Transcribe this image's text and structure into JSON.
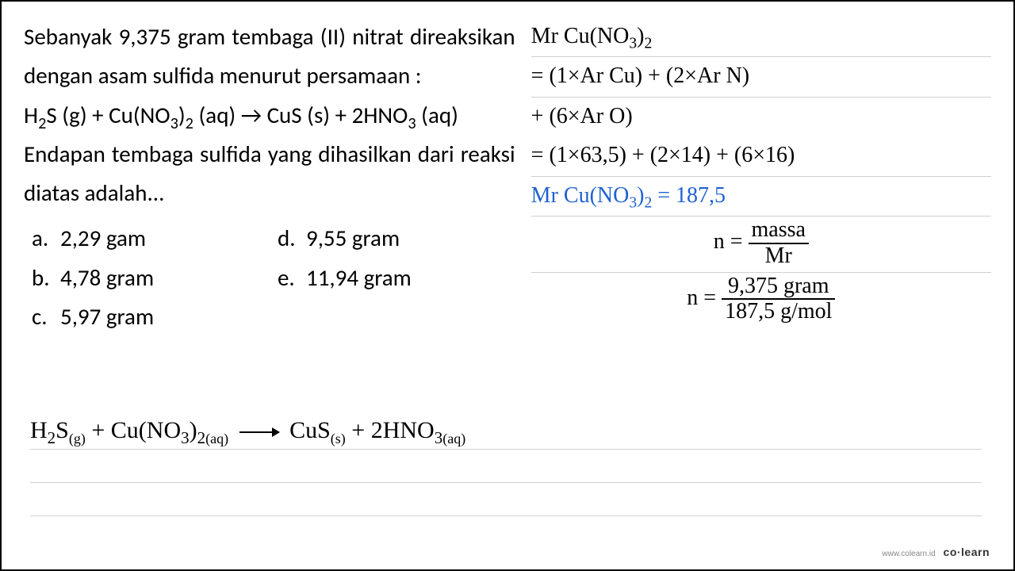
{
  "problem": {
    "line1": "Sebanyak 9,375 gram tembaga (II) nitrat direaksikan dengan asam sulfida menurut persamaan :",
    "equation_html": "H<sub>2</sub>S (g) + Cu(NO<sub>3</sub>)<sub>2</sub> (aq) → CuS (s) + 2HNO<sub>3</sub> (aq)",
    "line3": "Endapan tembaga sulfida yang dihasilkan dari reaksi diatas adalah..."
  },
  "options": {
    "a": "2,29 gam",
    "b": "4,78 gram",
    "c": "5,97 gram",
    "d": "9,55 gram",
    "e": "11,94 gram"
  },
  "work": {
    "l1_html": "Mr Cu(NO<sub>3</sub>)<sub>2</sub>",
    "l2": "= (1×Ar Cu) + (2×Ar N)",
    "l3": "+ (6×Ar O)",
    "l4": "= (1×63,5) + (2×14) + (6×16)",
    "l5_html": "Mr Cu(NO<sub>3</sub>)<sub>2</sub> = 187,5",
    "l6_prefix": "n = ",
    "l6_num": "massa",
    "l6_den": "Mr",
    "l7_prefix": "n = ",
    "l7_num": "9,375 gram",
    "l7_den": "187,5 g/mol"
  },
  "bottom": {
    "eq_lhs_html": "H<sub>2</sub>S<sub class='subsub'>(g)</sub> + Cu(NO<sub>3</sub>)<sub>2</sub><sub class='subsub'>(aq)</sub>",
    "eq_rhs_html": "CuS<sub class='subsub'>(s)</sub> + 2HNO<sub>3</sub><sub class='subsub'>(aq)</sub>"
  },
  "footer": {
    "url": "www.colearn.id",
    "brand": "co·learn"
  },
  "colors": {
    "text": "#000000",
    "highlight": "#1f62d1",
    "rule": "#d0d0d0",
    "background": "#ffffff"
  },
  "fonts": {
    "problem": "Calibri/Segoe UI, ~29px",
    "handwriting": "Comic Sans/handwritten, ~28px"
  }
}
